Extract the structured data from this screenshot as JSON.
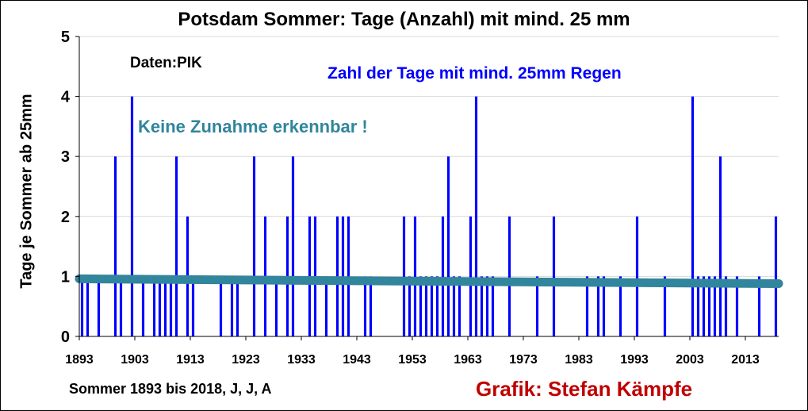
{
  "chart_data": {
    "type": "bar",
    "title": "Potsdam Sommer: Tage (Anzahl) mit mind. 25 mm",
    "source": "Daten:PIK",
    "ylabel": "Tage je Sommer ab 25mm",
    "xlabel": "Sommer 1893 bis 2018, J, J, A",
    "annotation_series": "Zahl der Tage mit mind. 25mm Regen",
    "annotation_trend": "Keine Zunahme erkennbar !",
    "credit": "Grafik: Stefan Kämpfe",
    "ylim": [
      0,
      5
    ],
    "yticks": [
      "0",
      "1",
      "2",
      "3",
      "4",
      "5"
    ],
    "xticks": [
      "1893",
      "1903",
      "1913",
      "1923",
      "1933",
      "1943",
      "1953",
      "1963",
      "1973",
      "1983",
      "1993",
      "2003",
      "2013"
    ],
    "bar_color": "#0000ff",
    "trend_color": "#31859c",
    "x": [
      1893,
      1894,
      1895,
      1896,
      1897,
      1898,
      1899,
      1900,
      1901,
      1902,
      1903,
      1904,
      1905,
      1906,
      1907,
      1908,
      1909,
      1910,
      1911,
      1912,
      1913,
      1914,
      1915,
      1916,
      1917,
      1918,
      1919,
      1920,
      1921,
      1922,
      1923,
      1924,
      1925,
      1926,
      1927,
      1928,
      1929,
      1930,
      1931,
      1932,
      1933,
      1934,
      1935,
      1936,
      1937,
      1938,
      1939,
      1940,
      1941,
      1942,
      1943,
      1944,
      1945,
      1946,
      1947,
      1948,
      1949,
      1950,
      1951,
      1952,
      1953,
      1954,
      1955,
      1956,
      1957,
      1958,
      1959,
      1960,
      1961,
      1962,
      1963,
      1964,
      1965,
      1966,
      1967,
      1968,
      1969,
      1970,
      1971,
      1972,
      1973,
      1974,
      1975,
      1976,
      1977,
      1978,
      1979,
      1980,
      1981,
      1982,
      1983,
      1984,
      1985,
      1986,
      1987,
      1988,
      1989,
      1990,
      1991,
      1992,
      1993,
      1994,
      1995,
      1996,
      1997,
      1998,
      1999,
      2000,
      2001,
      2002,
      2003,
      2004,
      2005,
      2006,
      2007,
      2008,
      2009,
      2010,
      2011,
      2012,
      2013,
      2014,
      2015,
      2016,
      2017,
      2018
    ],
    "values": [
      1,
      1,
      0,
      1,
      0,
      0,
      3,
      1,
      0,
      4,
      0,
      1,
      0,
      1,
      1,
      1,
      1,
      3,
      0,
      2,
      1,
      0,
      0,
      0,
      0,
      1,
      0,
      1,
      1,
      0,
      0,
      3,
      0,
      2,
      0,
      1,
      0,
      2,
      3,
      0,
      0,
      2,
      2,
      0,
      1,
      0,
      2,
      2,
      2,
      0,
      0,
      1,
      1,
      0,
      0,
      0,
      0,
      0,
      2,
      1,
      2,
      1,
      1,
      1,
      1,
      2,
      3,
      1,
      1,
      0,
      2,
      4,
      1,
      1,
      1,
      0,
      0,
      2,
      0,
      0,
      0,
      0,
      1,
      0,
      0,
      2,
      0,
      0,
      0,
      0,
      0,
      1,
      0,
      1,
      1,
      0,
      0,
      1,
      0,
      0,
      2,
      0,
      0,
      0,
      0,
      1,
      0,
      0,
      0,
      0,
      4,
      1,
      1,
      1,
      1,
      3,
      1,
      0,
      1,
      0,
      0,
      0,
      1,
      0,
      0,
      2
    ],
    "trend": {
      "start": 0.96,
      "end": 0.88
    }
  }
}
